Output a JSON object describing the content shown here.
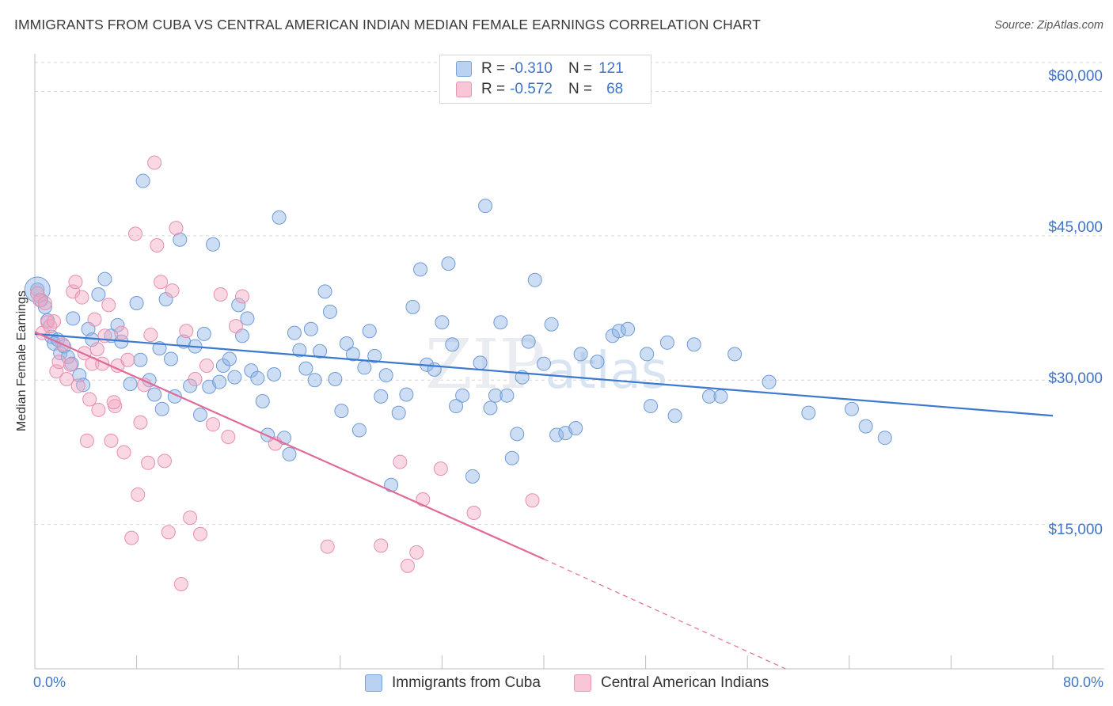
{
  "chart_data": {
    "type": "scatter",
    "title": "IMMIGRANTS FROM CUBA VS CENTRAL AMERICAN INDIAN MEDIAN FEMALE EARNINGS CORRELATION CHART",
    "source": "Source: ZipAtlas.com",
    "watermark": "ZIPatlas",
    "xlabel": "",
    "ylabel": "Median Female Earnings",
    "xlim": [
      0,
      80
    ],
    "ylim": [
      0,
      63000
    ],
    "x_tick_labels": {
      "left": "0.0%",
      "right": "80.0%"
    },
    "y_ticks": [
      {
        "value": 60000,
        "label": "$60,000"
      },
      {
        "value": 45000,
        "label": "$45,000"
      },
      {
        "value": 30000,
        "label": "$30,000"
      },
      {
        "value": 15000,
        "label": "$15,000"
      }
    ],
    "grid": "horizontal dashed",
    "legend_position": "bottom-center",
    "series": [
      {
        "name": "Immigrants from Cuba",
        "color": "#8fb4e6",
        "line_color": "#3b78d0",
        "R": "-0.310",
        "N": "121",
        "trend": {
          "x0": 0,
          "y0": 34800,
          "x1": 80,
          "y1": 26300
        },
        "points": [
          [
            0.2,
            39400
          ],
          [
            0.5,
            38300
          ],
          [
            0.8,
            37600
          ],
          [
            1.0,
            36200
          ],
          [
            1.3,
            34500
          ],
          [
            1.5,
            33800
          ],
          [
            1.8,
            34200
          ],
          [
            2.0,
            32800
          ],
          [
            2.3,
            33500
          ],
          [
            2.6,
            32400
          ],
          [
            2.9,
            31700
          ],
          [
            3.0,
            36400
          ],
          [
            3.5,
            30500
          ],
          [
            3.8,
            29500
          ],
          [
            4.2,
            35300
          ],
          [
            4.5,
            34200
          ],
          [
            5.0,
            38900
          ],
          [
            5.5,
            40500
          ],
          [
            6.0,
            34600
          ],
          [
            6.5,
            35700
          ],
          [
            6.8,
            34000
          ],
          [
            7.5,
            29600
          ],
          [
            8.0,
            38000
          ],
          [
            8.3,
            32100
          ],
          [
            8.5,
            50700
          ],
          [
            9.0,
            30000
          ],
          [
            9.4,
            28500
          ],
          [
            9.8,
            33300
          ],
          [
            10.0,
            27000
          ],
          [
            10.3,
            38400
          ],
          [
            10.7,
            32200
          ],
          [
            11.0,
            28300
          ],
          [
            11.4,
            44600
          ],
          [
            11.7,
            34000
          ],
          [
            12.2,
            29400
          ],
          [
            12.6,
            33500
          ],
          [
            13.0,
            26400
          ],
          [
            13.3,
            34800
          ],
          [
            13.7,
            29300
          ],
          [
            14.0,
            44100
          ],
          [
            14.5,
            29800
          ],
          [
            14.8,
            31500
          ],
          [
            15.3,
            32200
          ],
          [
            15.7,
            30300
          ],
          [
            16.0,
            37800
          ],
          [
            16.3,
            34600
          ],
          [
            16.7,
            36400
          ],
          [
            17.0,
            31000
          ],
          [
            17.5,
            30200
          ],
          [
            17.9,
            27800
          ],
          [
            18.3,
            24300
          ],
          [
            18.8,
            30600
          ],
          [
            19.2,
            46900
          ],
          [
            19.6,
            24000
          ],
          [
            20.0,
            22300
          ],
          [
            20.4,
            34900
          ],
          [
            20.8,
            33100
          ],
          [
            21.3,
            31200
          ],
          [
            21.7,
            35300
          ],
          [
            22.0,
            30000
          ],
          [
            22.4,
            33000
          ],
          [
            22.8,
            39200
          ],
          [
            23.2,
            37100
          ],
          [
            23.6,
            30100
          ],
          [
            24.1,
            26800
          ],
          [
            24.5,
            33800
          ],
          [
            25.0,
            32700
          ],
          [
            25.5,
            24800
          ],
          [
            25.9,
            31300
          ],
          [
            26.3,
            35100
          ],
          [
            26.7,
            32500
          ],
          [
            27.2,
            28300
          ],
          [
            27.6,
            30500
          ],
          [
            28.0,
            19100
          ],
          [
            28.6,
            26600
          ],
          [
            29.2,
            28500
          ],
          [
            29.7,
            37600
          ],
          [
            30.3,
            41500
          ],
          [
            30.8,
            31600
          ],
          [
            31.4,
            31100
          ],
          [
            32.0,
            36000
          ],
          [
            32.5,
            42100
          ],
          [
            32.8,
            33700
          ],
          [
            33.1,
            27300
          ],
          [
            33.6,
            28400
          ],
          [
            34.4,
            20000
          ],
          [
            35.0,
            31800
          ],
          [
            35.4,
            48100
          ],
          [
            35.8,
            27100
          ],
          [
            36.2,
            28400
          ],
          [
            36.6,
            36000
          ],
          [
            37.1,
            28400
          ],
          [
            37.5,
            21900
          ],
          [
            37.9,
            24400
          ],
          [
            38.3,
            30300
          ],
          [
            38.8,
            34000
          ],
          [
            39.3,
            40400
          ],
          [
            40.0,
            31700
          ],
          [
            40.6,
            35800
          ],
          [
            41.0,
            24300
          ],
          [
            41.7,
            24500
          ],
          [
            42.5,
            25000
          ],
          [
            42.9,
            32700
          ],
          [
            44.2,
            31900
          ],
          [
            45.4,
            34600
          ],
          [
            45.9,
            35100
          ],
          [
            46.6,
            35300
          ],
          [
            48.1,
            32700
          ],
          [
            48.4,
            27300
          ],
          [
            49.7,
            33900
          ],
          [
            50.3,
            26300
          ],
          [
            51.8,
            33700
          ],
          [
            53.0,
            28300
          ],
          [
            53.9,
            28300
          ],
          [
            55.0,
            32700
          ],
          [
            57.7,
            29800
          ],
          [
            60.8,
            26600
          ],
          [
            64.2,
            27000
          ],
          [
            65.3,
            25200
          ],
          [
            66.8,
            24000
          ]
        ]
      },
      {
        "name": "Central American Indians",
        "color": "#f2a8c1",
        "line_color": "#e06a98",
        "R": "-0.572",
        "N": "68",
        "trend": {
          "x0": 0,
          "y0": 35000,
          "x1": 40,
          "y1": 11400,
          "dash_to_x": 59,
          "dash_to_y": 0
        },
        "points": [
          [
            0.2,
            39000
          ],
          [
            0.4,
            38300
          ],
          [
            0.6,
            34900
          ],
          [
            0.8,
            38000
          ],
          [
            1.0,
            36000
          ],
          [
            1.2,
            35600
          ],
          [
            1.5,
            36100
          ],
          [
            1.7,
            30900
          ],
          [
            1.9,
            31900
          ],
          [
            2.2,
            33700
          ],
          [
            2.5,
            30100
          ],
          [
            2.8,
            31600
          ],
          [
            3.0,
            39200
          ],
          [
            3.2,
            40200
          ],
          [
            3.4,
            29400
          ],
          [
            3.7,
            38600
          ],
          [
            3.9,
            32800
          ],
          [
            4.1,
            23700
          ],
          [
            4.3,
            28000
          ],
          [
            4.5,
            31700
          ],
          [
            4.7,
            36300
          ],
          [
            5.0,
            26900
          ],
          [
            5.3,
            31700
          ],
          [
            5.5,
            34600
          ],
          [
            5.8,
            37800
          ],
          [
            6.0,
            23700
          ],
          [
            6.3,
            27300
          ],
          [
            6.5,
            31500
          ],
          [
            6.8,
            34900
          ],
          [
            7.0,
            22500
          ],
          [
            7.3,
            32100
          ],
          [
            7.6,
            13600
          ],
          [
            7.9,
            45200
          ],
          [
            8.1,
            18100
          ],
          [
            8.3,
            25600
          ],
          [
            8.6,
            29500
          ],
          [
            8.9,
            21400
          ],
          [
            9.1,
            34700
          ],
          [
            9.4,
            52600
          ],
          [
            9.6,
            44000
          ],
          [
            9.9,
            40200
          ],
          [
            10.2,
            21600
          ],
          [
            10.5,
            14200
          ],
          [
            10.8,
            39300
          ],
          [
            11.1,
            45800
          ],
          [
            11.5,
            8800
          ],
          [
            11.9,
            35100
          ],
          [
            12.2,
            15700
          ],
          [
            12.6,
            30100
          ],
          [
            13.0,
            14000
          ],
          [
            13.5,
            31500
          ],
          [
            14.0,
            25400
          ],
          [
            14.6,
            38900
          ],
          [
            15.2,
            24100
          ],
          [
            15.8,
            35600
          ],
          [
            16.3,
            38700
          ],
          [
            18.9,
            23400
          ],
          [
            23.0,
            12700
          ],
          [
            27.2,
            12800
          ],
          [
            28.7,
            21500
          ],
          [
            29.3,
            10700
          ],
          [
            30.0,
            12100
          ],
          [
            30.5,
            17600
          ],
          [
            31.9,
            20800
          ],
          [
            34.5,
            16200
          ],
          [
            39.1,
            17500
          ],
          [
            6.2,
            27700
          ],
          [
            4.9,
            33200
          ]
        ]
      }
    ]
  }
}
